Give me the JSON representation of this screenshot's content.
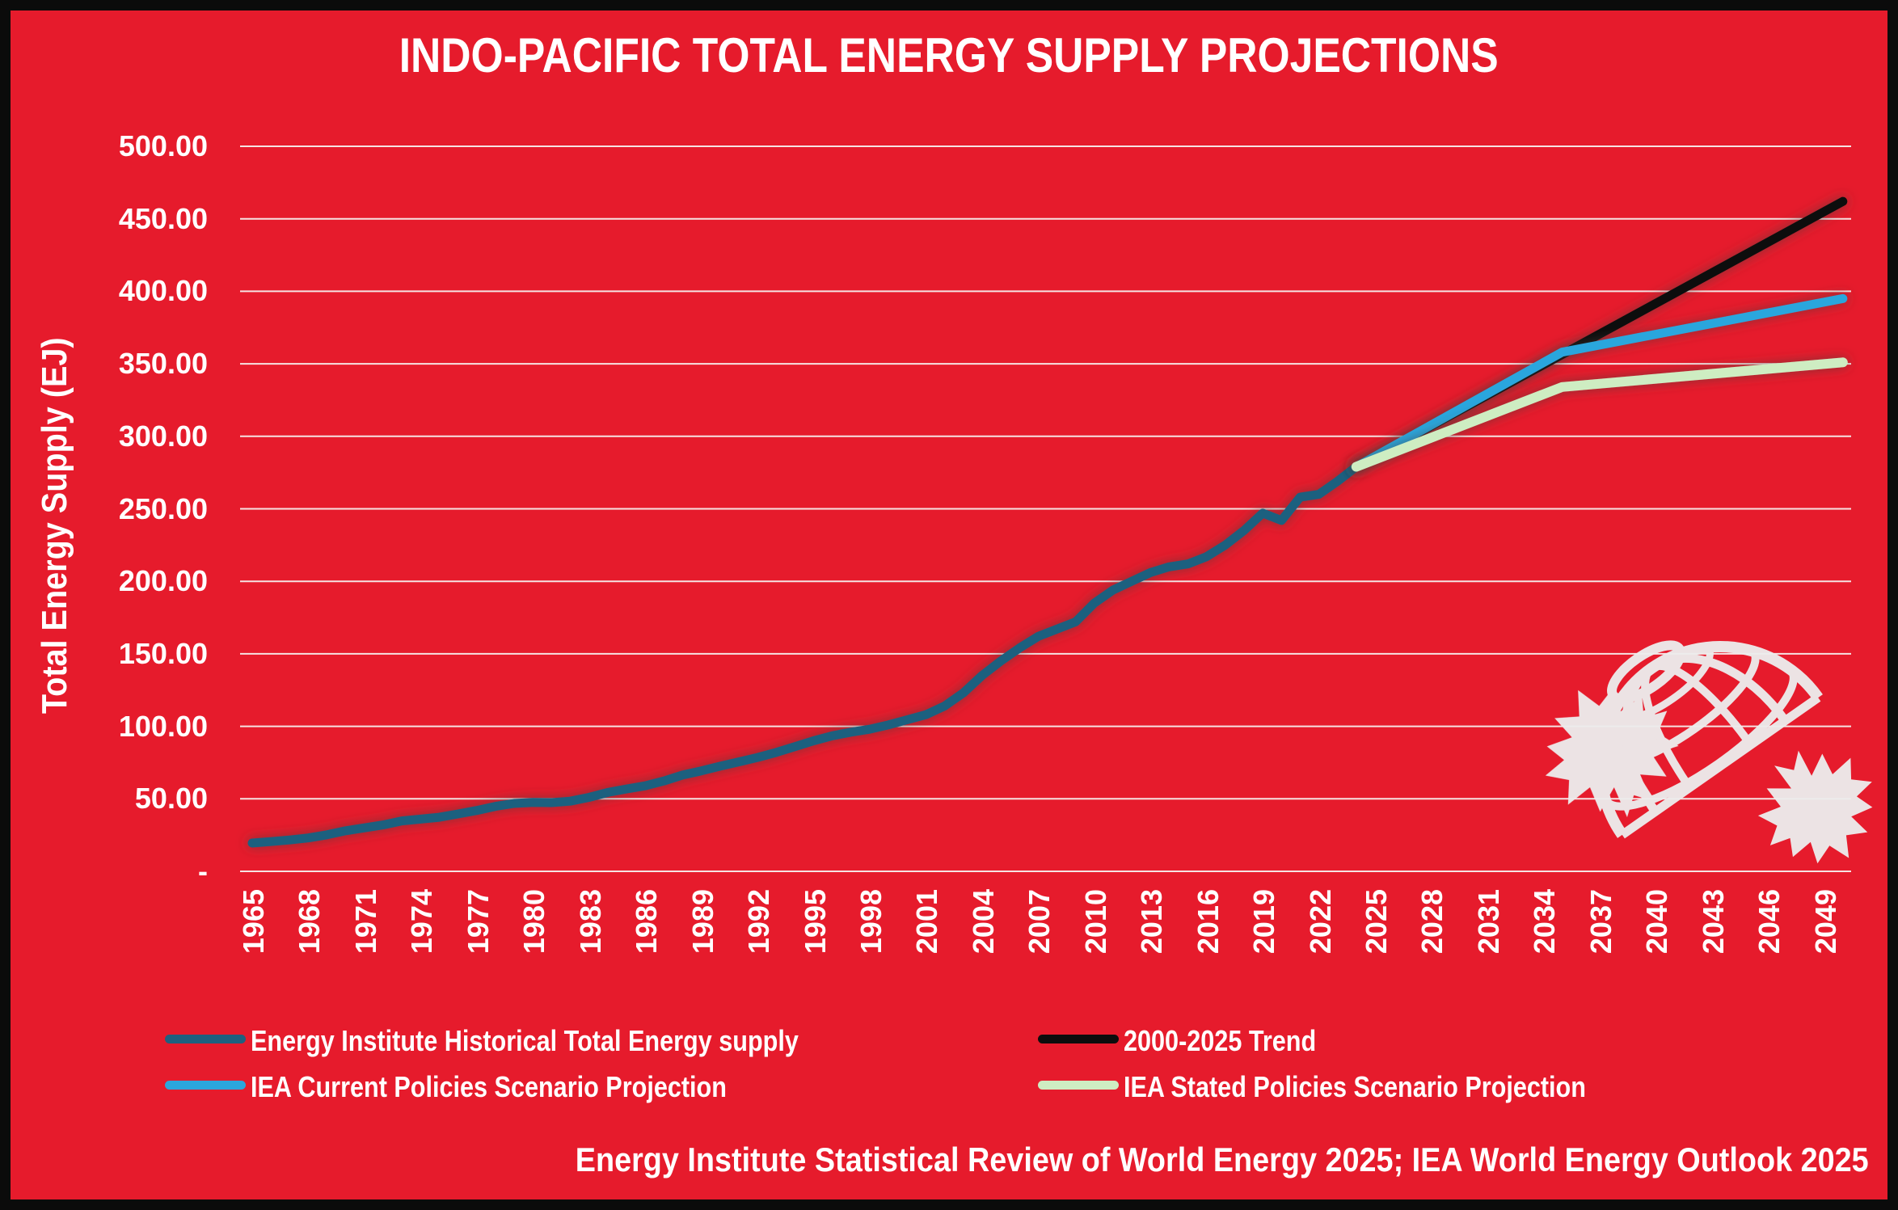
{
  "title": "INDO-PACIFIC TOTAL ENERGY SUPPLY PROJECTIONS",
  "y_axis_title": "Total Energy Supply (EJ)",
  "source_note": "Energy Institute Statistical Review of World Energy 2025; IEA World Energy Outlook 2025",
  "logo": "globe-with-maple-leaves",
  "colors": {
    "background": "#E61B2C",
    "frame": "#0B0B0B",
    "text": "#FFFFFF",
    "gridline": "#F6E3E3",
    "logo": "#EDEDED",
    "historical": "#1F607F",
    "trend": "#0D0D0D",
    "current_policies": "#2BA6DD",
    "stated_policies": "#CEEDC2"
  },
  "chart_data": {
    "type": "line",
    "title": "INDO-PACIFIC TOTAL ENERGY SUPPLY PROJECTIONS",
    "xlabel": "",
    "ylabel": "Total Energy Supply (EJ)",
    "xlim": [
      1964,
      2051
    ],
    "ylim": [
      0,
      500
    ],
    "grid": "horizontal",
    "legend_position": "bottom",
    "x_ticks": [
      1965,
      1968,
      1971,
      1974,
      1977,
      1980,
      1983,
      1986,
      1989,
      1992,
      1995,
      1998,
      2001,
      2004,
      2007,
      2010,
      2013,
      2016,
      2019,
      2022,
      2025,
      2028,
      2031,
      2034,
      2037,
      2040,
      2043,
      2046,
      2049
    ],
    "y_ticks": [
      {
        "value": 500,
        "label": "500.00"
      },
      {
        "value": 450,
        "label": "450.00"
      },
      {
        "value": 400,
        "label": "400.00"
      },
      {
        "value": 350,
        "label": "350.00"
      },
      {
        "value": 300,
        "label": "300.00"
      },
      {
        "value": 250,
        "label": "250.00"
      },
      {
        "value": 200,
        "label": "200.00"
      },
      {
        "value": 150,
        "label": "150.00"
      },
      {
        "value": 100,
        "label": "100.00"
      },
      {
        "value": 50,
        "label": "50.00"
      },
      {
        "value": 0,
        "label": "-"
      }
    ],
    "series": [
      {
        "name": "Energy Institute Historical Total Energy supply",
        "color": "#1F607F",
        "width": 11,
        "points": [
          [
            1965,
            19.5
          ],
          [
            1966,
            20.5
          ],
          [
            1967,
            21.6
          ],
          [
            1968,
            23.0
          ],
          [
            1969,
            25.2
          ],
          [
            1970,
            28.0
          ],
          [
            1971,
            30.0
          ],
          [
            1972,
            32.0
          ],
          [
            1973,
            34.8
          ],
          [
            1974,
            36.0
          ],
          [
            1975,
            37.3
          ],
          [
            1976,
            39.6
          ],
          [
            1977,
            42.0
          ],
          [
            1978,
            44.8
          ],
          [
            1979,
            46.8
          ],
          [
            1980,
            47.5
          ],
          [
            1981,
            47.4
          ],
          [
            1982,
            48.4
          ],
          [
            1983,
            51.0
          ],
          [
            1984,
            54.4
          ],
          [
            1985,
            56.8
          ],
          [
            1986,
            59.0
          ],
          [
            1987,
            62.3
          ],
          [
            1988,
            66.4
          ],
          [
            1989,
            69.3
          ],
          [
            1990,
            72.5
          ],
          [
            1991,
            75.5
          ],
          [
            1992,
            78.5
          ],
          [
            1993,
            82.0
          ],
          [
            1994,
            86.0
          ],
          [
            1995,
            90.0
          ],
          [
            1996,
            93.5
          ],
          [
            1997,
            96.0
          ],
          [
            1998,
            98.0
          ],
          [
            1999,
            101.0
          ],
          [
            2000,
            104.5
          ],
          [
            2001,
            108.0
          ],
          [
            2002,
            114.0
          ],
          [
            2003,
            123.0
          ],
          [
            2004,
            135.0
          ],
          [
            2005,
            145.0
          ],
          [
            2006,
            154.0
          ],
          [
            2007,
            162.0
          ],
          [
            2008,
            167.0
          ],
          [
            2009,
            172.0
          ],
          [
            2010,
            185.0
          ],
          [
            2011,
            194.0
          ],
          [
            2012,
            200.0
          ],
          [
            2013,
            206.0
          ],
          [
            2014,
            210.0
          ],
          [
            2015,
            212.0
          ],
          [
            2016,
            217.0
          ],
          [
            2017,
            225.0
          ],
          [
            2018,
            235.0
          ],
          [
            2019,
            247.0
          ],
          [
            2020,
            242.0
          ],
          [
            2021,
            258.0
          ],
          [
            2022,
            260.0
          ],
          [
            2023,
            269.0
          ],
          [
            2024,
            279.0
          ]
        ]
      },
      {
        "name": "2000-2025 Trend",
        "color": "#0D0D0D",
        "width": 11,
        "points": [
          [
            2024,
            279
          ],
          [
            2050,
            462
          ]
        ]
      },
      {
        "name": "IEA Current Policies Scenario Projection",
        "color": "#2BA6DD",
        "width": 11,
        "points": [
          [
            2024,
            279
          ],
          [
            2035,
            358
          ],
          [
            2050,
            395
          ]
        ]
      },
      {
        "name": "IEA Stated Policies Scenario Projection",
        "color": "#CEEDC2",
        "width": 12,
        "points": [
          [
            2024,
            279
          ],
          [
            2035,
            334
          ],
          [
            2050,
            351
          ]
        ]
      }
    ]
  }
}
